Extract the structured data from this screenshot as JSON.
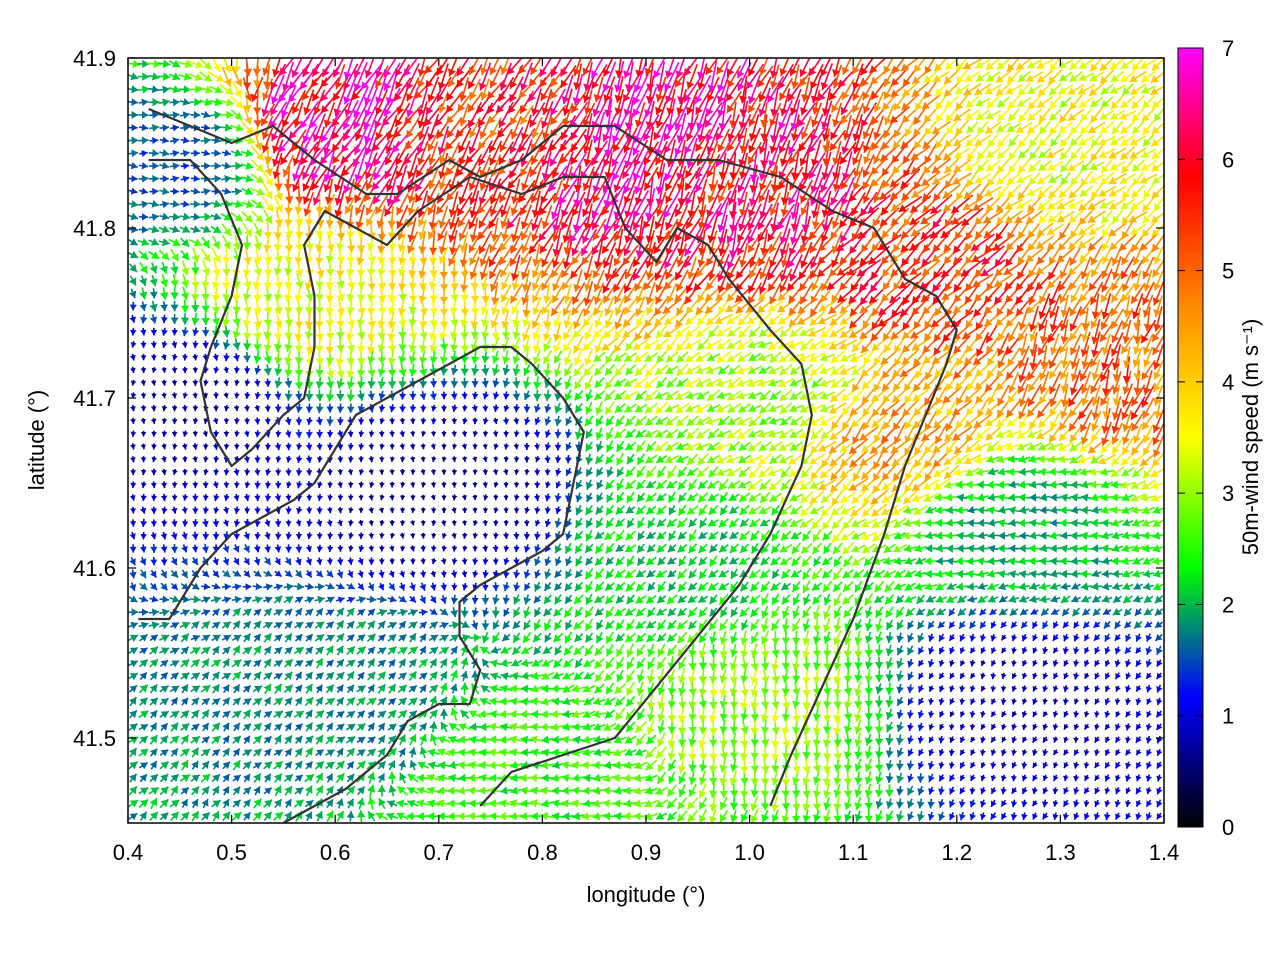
{
  "chart_data": {
    "type": "vector-field",
    "xlabel": "longitude (°)",
    "ylabel": "latitude (°)",
    "colorbar_label": "50m-wind speed (m s⁻¹)",
    "xlim": [
      0.4,
      1.4
    ],
    "ylim": [
      41.45,
      41.9
    ],
    "xticks": [
      "0.4",
      "0.5",
      "0.6",
      "0.7",
      "0.8",
      "0.9",
      "1.0",
      "1.1",
      "1.2",
      "1.3",
      "1.4"
    ],
    "yticks": [
      "41.5",
      "41.6",
      "41.7",
      "41.8",
      "41.9"
    ],
    "colorbar": {
      "range": [
        0,
        7
      ],
      "ticks": [
        "0",
        "1",
        "2",
        "3",
        "4",
        "5",
        "6",
        "7"
      ],
      "stops": [
        "#000000",
        "#0000ff",
        "#00ff00",
        "#ffff00",
        "#ff8c00",
        "#ff0000",
        "#ff00ff"
      ]
    },
    "grid": true,
    "vectors_note": "wind arrows sampled on a regular grid, colored by speed",
    "wind_regions": [
      {
        "lon": 1.18,
        "lat": 41.78,
        "speed": 5.5,
        "dir_deg": 225
      },
      {
        "lon": 1.35,
        "lat": 41.72,
        "speed": 5.0,
        "dir_deg": 200
      },
      {
        "lon": 1.15,
        "lat": 41.68,
        "speed": 4.5,
        "dir_deg": 220
      },
      {
        "lon": 1.3,
        "lat": 41.85,
        "speed": 3.5,
        "dir_deg": 230
      },
      {
        "lon": 1.0,
        "lat": 41.82,
        "speed": 6.0,
        "dir_deg": 200
      },
      {
        "lon": 0.75,
        "lat": 41.86,
        "speed": 5.5,
        "dir_deg": 210
      },
      {
        "lon": 0.89,
        "lat": 41.85,
        "speed": 6.5,
        "dir_deg": 200
      },
      {
        "lon": 0.6,
        "lat": 41.86,
        "speed": 6.5,
        "dir_deg": 210
      },
      {
        "lon": 0.57,
        "lat": 41.76,
        "speed": 3.5,
        "dir_deg": 180
      },
      {
        "lon": 1.02,
        "lat": 41.7,
        "speed": 3.0,
        "dir_deg": 240
      },
      {
        "lon": 1.02,
        "lat": 41.52,
        "speed": 3.0,
        "dir_deg": 180
      },
      {
        "lon": 0.95,
        "lat": 41.6,
        "speed": 2.2,
        "dir_deg": 225
      },
      {
        "lon": 0.78,
        "lat": 41.47,
        "speed": 2.5,
        "dir_deg": 270
      },
      {
        "lon": 0.6,
        "lat": 41.52,
        "speed": 1.8,
        "dir_deg": 45
      },
      {
        "lon": 1.25,
        "lat": 41.63,
        "speed": 2.0,
        "dir_deg": 270
      },
      {
        "lon": 0.45,
        "lat": 41.7,
        "speed": 0.7,
        "dir_deg": 180
      },
      {
        "lon": 0.7,
        "lat": 41.65,
        "speed": 0.6,
        "dir_deg": 180
      },
      {
        "lon": 1.25,
        "lat": 41.52,
        "speed": 0.8,
        "dir_deg": 200
      },
      {
        "lon": 0.45,
        "lat": 41.84,
        "speed": 1.5,
        "dir_deg": 90
      }
    ],
    "contours": [
      [
        [
          0.42,
          41.87
        ],
        [
          0.46,
          41.86
        ],
        [
          0.5,
          41.85
        ],
        [
          0.54,
          41.86
        ],
        [
          0.58,
          41.84
        ],
        [
          0.63,
          41.82
        ],
        [
          0.66,
          41.82
        ],
        [
          0.71,
          41.84
        ],
        [
          0.74,
          41.83
        ],
        [
          0.78,
          41.84
        ],
        [
          0.82,
          41.86
        ],
        [
          0.87,
          41.86
        ],
        [
          0.92,
          41.84
        ],
        [
          0.97,
          41.84
        ],
        [
          1.03,
          41.83
        ],
        [
          1.08,
          41.81
        ],
        [
          1.12,
          41.8
        ],
        [
          1.15,
          41.77
        ],
        [
          1.18,
          41.76
        ],
        [
          1.2,
          41.74
        ],
        [
          1.19,
          41.72
        ],
        [
          1.17,
          41.69
        ],
        [
          1.15,
          41.66
        ],
        [
          1.13,
          41.62
        ],
        [
          1.1,
          41.57
        ],
        [
          1.07,
          41.53
        ],
        [
          1.04,
          41.49
        ],
        [
          1.02,
          41.46
        ]
      ],
      [
        [
          0.42,
          41.84
        ],
        [
          0.46,
          41.84
        ],
        [
          0.49,
          41.82
        ],
        [
          0.51,
          41.79
        ],
        [
          0.5,
          41.76
        ],
        [
          0.48,
          41.73
        ],
        [
          0.47,
          41.71
        ],
        [
          0.48,
          41.68
        ],
        [
          0.5,
          41.66
        ],
        [
          0.52,
          41.67
        ],
        [
          0.55,
          41.69
        ],
        [
          0.57,
          41.7
        ],
        [
          0.58,
          41.73
        ],
        [
          0.58,
          41.76
        ],
        [
          0.57,
          41.79
        ],
        [
          0.59,
          41.81
        ],
        [
          0.62,
          41.8
        ],
        [
          0.65,
          41.79
        ],
        [
          0.68,
          41.81
        ],
        [
          0.73,
          41.83
        ],
        [
          0.78,
          41.82
        ],
        [
          0.82,
          41.83
        ],
        [
          0.86,
          41.83
        ],
        [
          0.88,
          41.8
        ],
        [
          0.91,
          41.78
        ],
        [
          0.93,
          41.8
        ],
        [
          0.96,
          41.79
        ],
        [
          0.98,
          41.77
        ],
        [
          1.02,
          41.74
        ],
        [
          1.05,
          41.72
        ],
        [
          1.06,
          41.69
        ],
        [
          1.05,
          41.66
        ],
        [
          1.02,
          41.62
        ],
        [
          0.99,
          41.59
        ],
        [
          0.95,
          41.56
        ],
        [
          0.91,
          41.53
        ],
        [
          0.87,
          41.5
        ],
        [
          0.82,
          41.49
        ],
        [
          0.77,
          41.48
        ],
        [
          0.74,
          41.46
        ]
      ],
      [
        [
          0.41,
          41.57
        ],
        [
          0.44,
          41.57
        ],
        [
          0.47,
          41.6
        ],
        [
          0.5,
          41.62
        ],
        [
          0.53,
          41.63
        ],
        [
          0.56,
          41.64
        ],
        [
          0.58,
          41.65
        ],
        [
          0.6,
          41.67
        ],
        [
          0.62,
          41.69
        ],
        [
          0.65,
          41.7
        ],
        [
          0.68,
          41.71
        ],
        [
          0.71,
          41.72
        ],
        [
          0.74,
          41.73
        ],
        [
          0.77,
          41.73
        ],
        [
          0.79,
          41.72
        ],
        [
          0.82,
          41.7
        ],
        [
          0.84,
          41.68
        ],
        [
          0.83,
          41.65
        ],
        [
          0.82,
          41.62
        ],
        [
          0.8,
          41.61
        ],
        [
          0.77,
          41.6
        ],
        [
          0.74,
          41.59
        ],
        [
          0.72,
          41.58
        ],
        [
          0.72,
          41.56
        ],
        [
          0.74,
          41.54
        ],
        [
          0.73,
          41.52
        ],
        [
          0.7,
          41.52
        ],
        [
          0.67,
          41.51
        ],
        [
          0.65,
          41.49
        ],
        [
          0.63,
          41.48
        ],
        [
          0.61,
          41.47
        ],
        [
          0.58,
          41.46
        ],
        [
          0.55,
          41.45
        ]
      ]
    ]
  }
}
